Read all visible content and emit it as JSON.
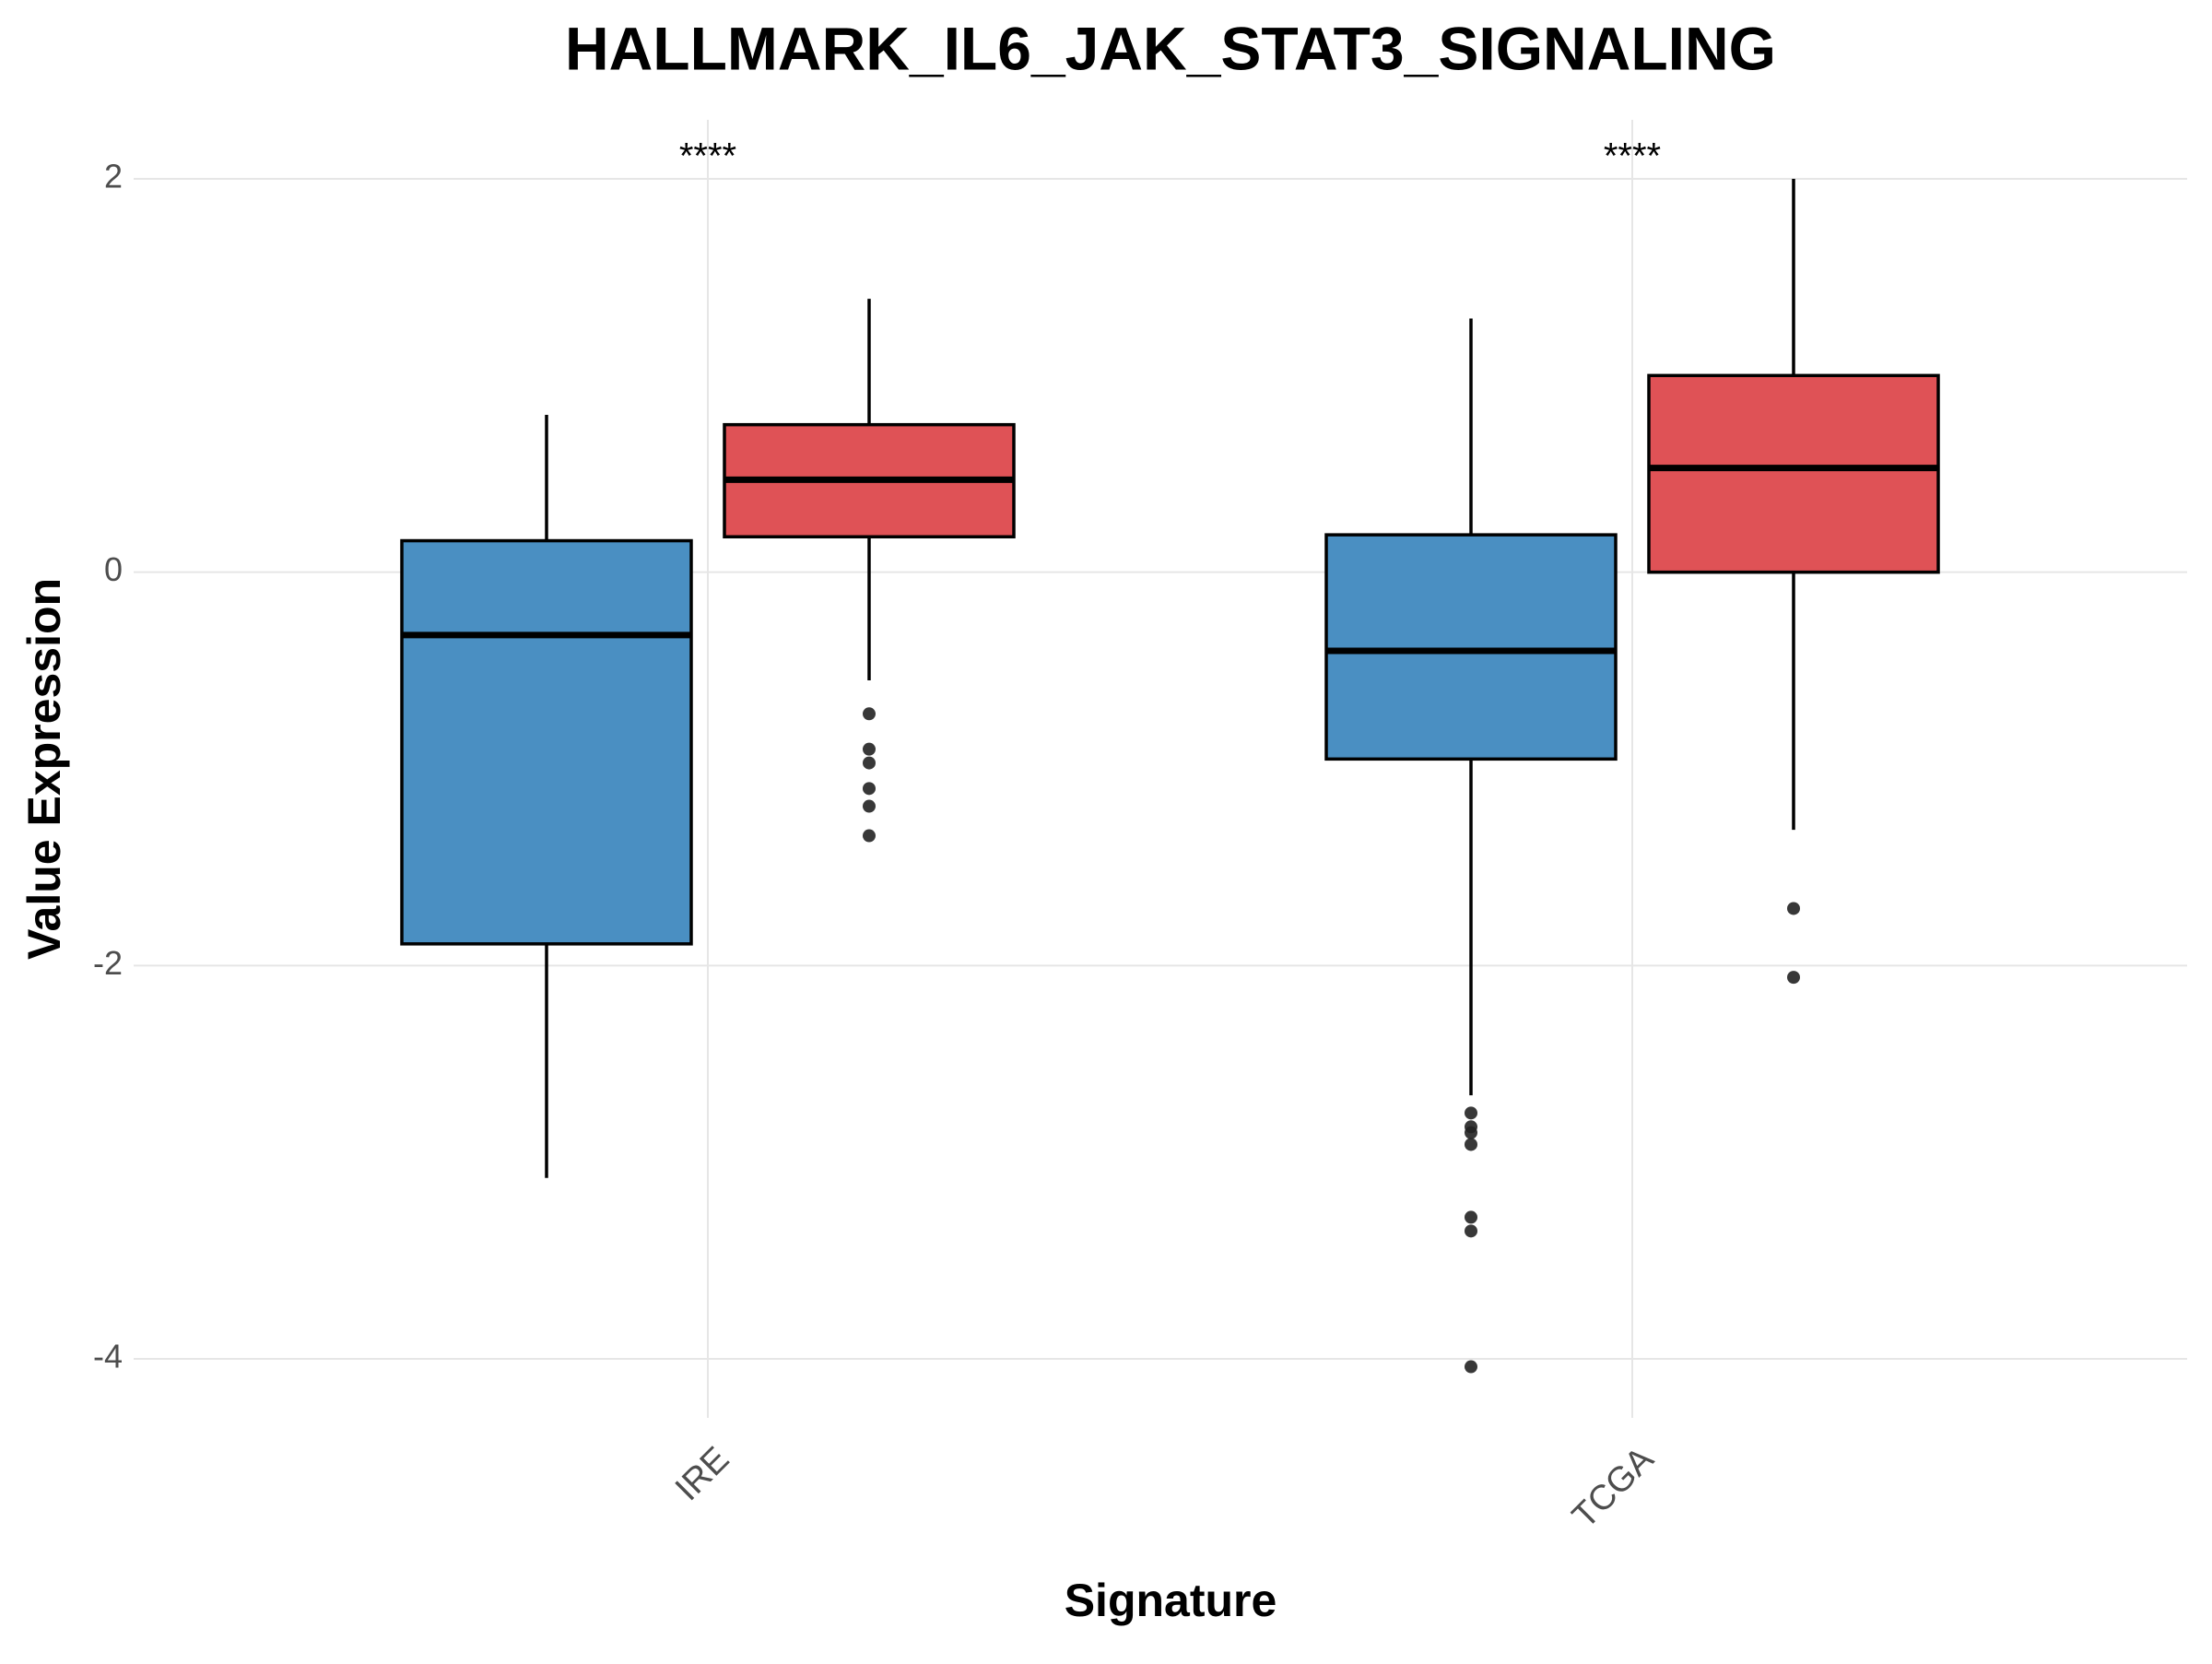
{
  "chart_data": {
    "type": "box",
    "title": "HALLMARK_IL6_JAK_STAT3_SIGNALING",
    "x_label": "Signature",
    "y_label": "Value Expression",
    "categories": [
      "IRE",
      "TCGA"
    ],
    "significance": [
      "****",
      "****"
    ],
    "series": [
      {
        "color": "#4a8fc2",
        "stats": [
          {
            "whisker_low": -3.08,
            "q1": -1.89,
            "median": -0.32,
            "q3": 0.16,
            "whisker_high": 0.8,
            "outliers": []
          },
          {
            "whisker_low": -2.66,
            "q1": -0.95,
            "median": -0.4,
            "q3": 0.19,
            "whisker_high": 1.29,
            "outliers": [
              -2.75,
              -2.82,
              -2.85,
              -2.91,
              -3.28,
              -3.35,
              -4.04
            ]
          }
        ]
      },
      {
        "color": "#df5256",
        "stats": [
          {
            "whisker_low": -0.55,
            "q1": 0.18,
            "median": 0.47,
            "q3": 0.75,
            "whisker_high": 1.39,
            "outliers": [
              -0.72,
              -0.9,
              -0.97,
              -1.1,
              -1.19,
              -1.34
            ]
          },
          {
            "whisker_low": -1.31,
            "q1": 0.0,
            "median": 0.53,
            "q3": 1.0,
            "whisker_high": 2.0,
            "outliers": [
              -1.71,
              -2.06
            ]
          }
        ]
      }
    ],
    "ylim": [
      -4.3,
      2.3
    ],
    "yticks": [
      -4,
      -2,
      0,
      2
    ],
    "grid": true
  }
}
